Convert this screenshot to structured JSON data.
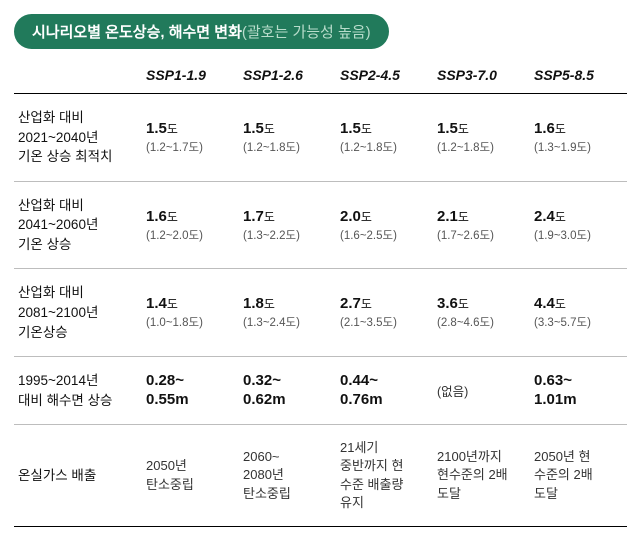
{
  "title": {
    "main": "시나리오별 온도상승, 해수면 변화",
    "sub": "(괄호는 가능성 높음)"
  },
  "colors": {
    "title_bg": "#217a5b",
    "title_text": "#ffffff",
    "title_sub_text": "#b8dccb",
    "border_strong": "#000000",
    "border_light": "#bdbdbd",
    "text": "#111111",
    "range_text": "#555555"
  },
  "columns": [
    "SSP1-1.9",
    "SSP1-2.6",
    "SSP2-4.5",
    "SSP3-7.0",
    "SSP5-8.5"
  ],
  "rows": [
    {
      "label_lines": [
        "산업화 대비",
        "2021~2040년",
        "기온 상승 최적치"
      ],
      "type": "temp",
      "cells": [
        {
          "value": "1.5",
          "unit": "도",
          "range": "(1.2~1.7도)"
        },
        {
          "value": "1.5",
          "unit": "도",
          "range": "(1.2~1.8도)"
        },
        {
          "value": "1.5",
          "unit": "도",
          "range": "(1.2~1.8도)"
        },
        {
          "value": "1.5",
          "unit": "도",
          "range": "(1.2~1.8도)"
        },
        {
          "value": "1.6",
          "unit": "도",
          "range": "(1.3~1.9도)"
        }
      ]
    },
    {
      "label_lines": [
        "산업화 대비",
        "2041~2060년",
        "기온 상승"
      ],
      "type": "temp",
      "cells": [
        {
          "value": "1.6",
          "unit": "도",
          "range": "(1.2~2.0도)"
        },
        {
          "value": "1.7",
          "unit": "도",
          "range": "(1.3~2.2도)"
        },
        {
          "value": "2.0",
          "unit": "도",
          "range": "(1.6~2.5도)"
        },
        {
          "value": "2.1",
          "unit": "도",
          "range": "(1.7~2.6도)"
        },
        {
          "value": "2.4",
          "unit": "도",
          "range": "(1.9~3.0도)"
        }
      ]
    },
    {
      "label_lines": [
        "산업화 대비",
        "2081~2100년",
        "기온상승"
      ],
      "type": "temp",
      "cells": [
        {
          "value": "1.4",
          "unit": "도",
          "range": "(1.0~1.8도)"
        },
        {
          "value": "1.8",
          "unit": "도",
          "range": "(1.3~2.4도)"
        },
        {
          "value": "2.7",
          "unit": "도",
          "range": "(2.1~3.5도)"
        },
        {
          "value": "3.6",
          "unit": "도",
          "range": "(2.8~4.6도)"
        },
        {
          "value": "4.4",
          "unit": "도",
          "range": "(3.3~5.7도)"
        }
      ]
    },
    {
      "label_lines": [
        "1995~2014년",
        "대비 해수면 상승"
      ],
      "type": "sea",
      "cells": [
        {
          "line1": "0.28~",
          "line2": "0.55m"
        },
        {
          "line1": "0.32~",
          "line2": "0.62m"
        },
        {
          "line1": "0.44~",
          "line2": "0.76m"
        },
        {
          "none": "(없음)"
        },
        {
          "line1": "0.63~",
          "line2": "1.01m"
        }
      ]
    },
    {
      "label_lines": [
        "온실가스 배출"
      ],
      "type": "note",
      "cells": [
        {
          "lines": [
            "2050년",
            "탄소중립"
          ]
        },
        {
          "lines": [
            "2060~",
            "2080년",
            "탄소중립"
          ]
        },
        {
          "lines": [
            "21세기",
            "중반까지 현",
            "수준 배출량",
            "유지"
          ]
        },
        {
          "lines": [
            "2100년까지",
            "현수준의 2배",
            "도달"
          ]
        },
        {
          "lines": [
            "2050년 현",
            "수준의 2배",
            "도달"
          ]
        }
      ]
    }
  ]
}
